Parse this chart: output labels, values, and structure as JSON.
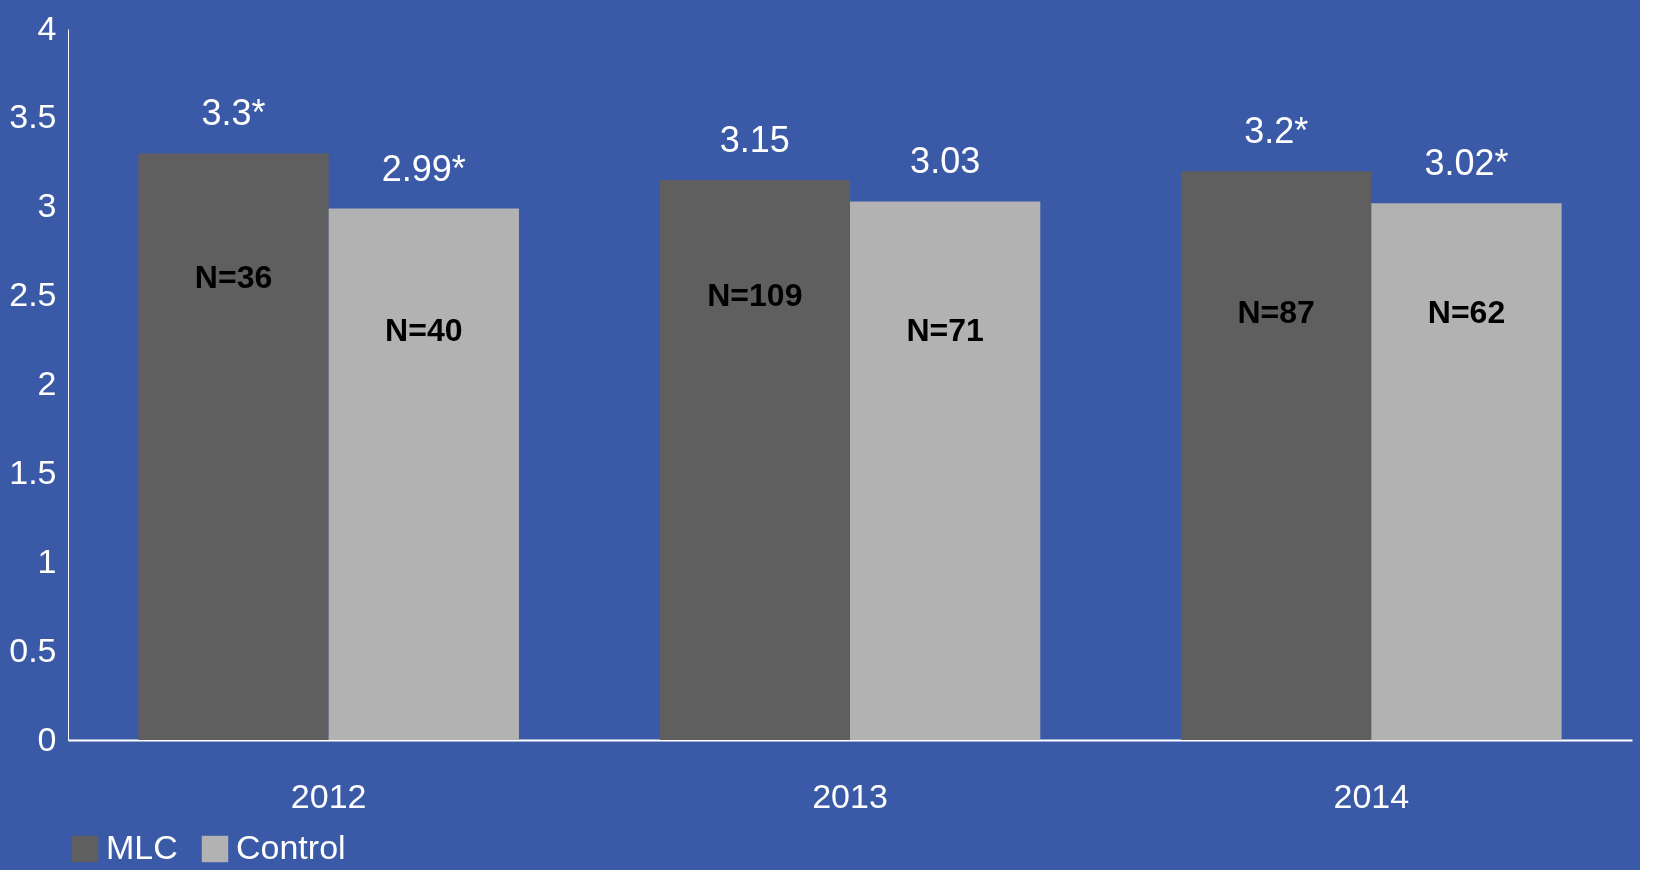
{
  "chart_data": {
    "type": "bar",
    "categories": [
      "2012",
      "2013",
      "2014"
    ],
    "series": [
      {
        "name": "MLC",
        "color": "#5f5f5f",
        "values": [
          3.3,
          3.15,
          3.2
        ],
        "value_labels": [
          "3.3*",
          "3.15",
          "3.2*"
        ]
      },
      {
        "name": "Control",
        "color": "#b2b2b2",
        "values": [
          2.99,
          3.03,
          3.02
        ],
        "value_labels": [
          "2.99*",
          "3.03",
          "3.02*"
        ]
      }
    ],
    "ylim": [
      0,
      4
    ],
    "yticks": [
      0,
      0.5,
      1,
      1.5,
      2,
      2.5,
      3,
      3.5,
      4
    ],
    "grid": false,
    "legend": "bottom",
    "annotations": [
      {
        "text": "N=36",
        "x": "2012",
        "y": 2.6
      },
      {
        "text": "N=40",
        "x": "2012",
        "y": 2.3
      },
      {
        "text": "N=109",
        "x": "2013",
        "y": 2.5
      },
      {
        "text": "N=71",
        "x": "2013",
        "y": 2.3
      },
      {
        "text": "N=87",
        "x": "2014",
        "y": 2.4
      },
      {
        "text": "N=62",
        "x": "2014",
        "y": 2.4
      }
    ]
  }
}
